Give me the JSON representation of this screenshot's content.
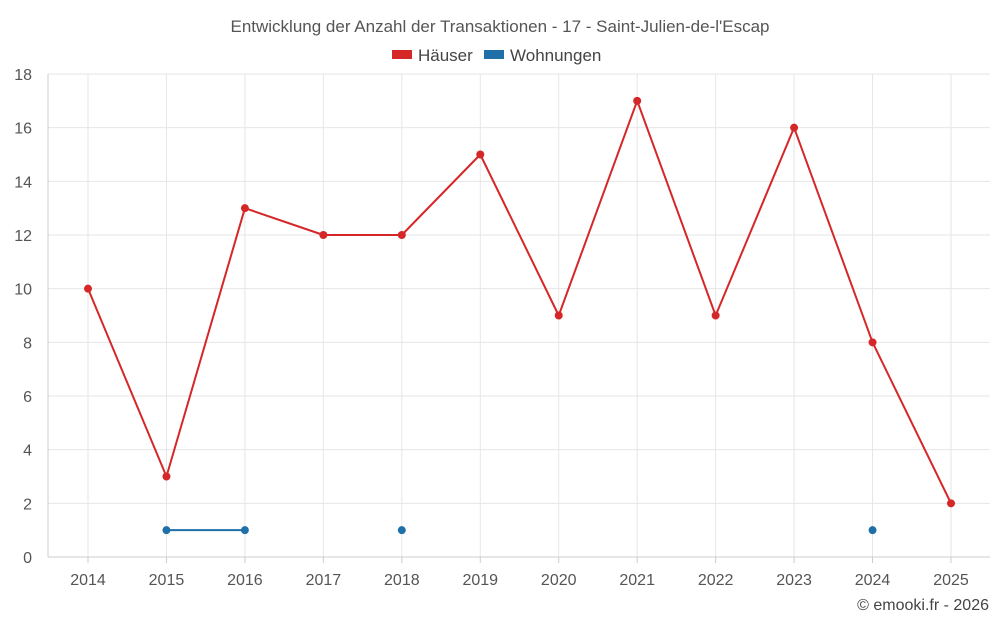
{
  "chart_data": {
    "type": "line",
    "title": "Entwicklung der Anzahl der Transaktionen - 17 - Saint-Julien-de-l'Escap",
    "categories": [
      "2014",
      "2015",
      "2016",
      "2017",
      "2018",
      "2019",
      "2020",
      "2021",
      "2022",
      "2023",
      "2024",
      "2025"
    ],
    "series": [
      {
        "name": "Häuser",
        "color": "#d62728",
        "values": [
          10,
          3,
          13,
          12,
          12,
          15,
          9,
          17,
          9,
          16,
          8,
          2
        ]
      },
      {
        "name": "Wohnungen",
        "color": "#1f6fa8",
        "values": [
          null,
          1,
          1,
          null,
          1,
          null,
          null,
          null,
          null,
          null,
          1,
          null
        ]
      }
    ],
    "ylim": [
      0,
      18
    ],
    "yticks": [
      0,
      2,
      4,
      6,
      8,
      10,
      12,
      14,
      16,
      18
    ],
    "grid": true,
    "legend_position": "top-center"
  },
  "credit": "© emooki.fr - 2026"
}
